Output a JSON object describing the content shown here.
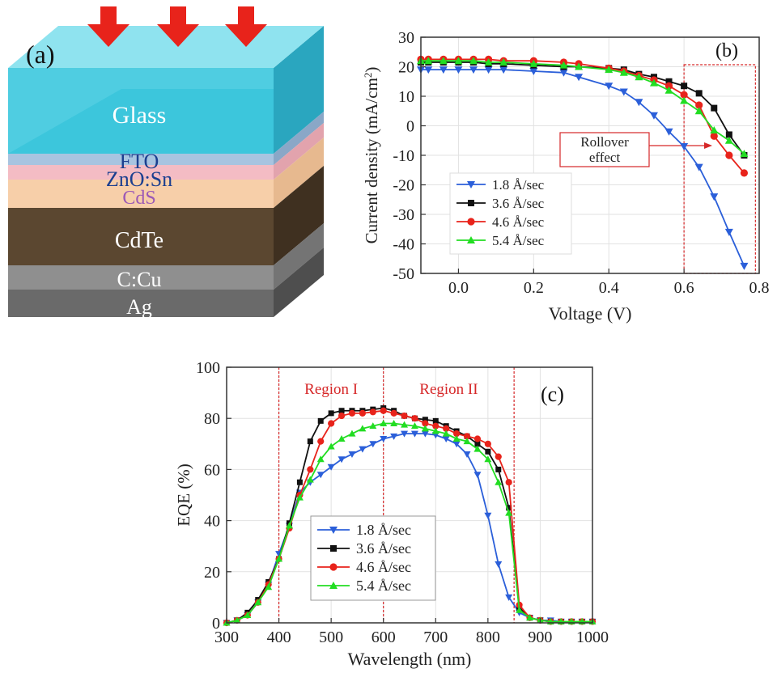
{
  "panel_a": {
    "label": "(a)",
    "layers": [
      {
        "name": "Glass",
        "color": "#3cc6dc"
      },
      {
        "name": "FTO",
        "color": "#a8c4e0",
        "text_color": "#1b3f8f"
      },
      {
        "name": "ZnO:Sn",
        "color": "#f4bcc4",
        "text_color": "#1b3f8f"
      },
      {
        "name": "CdS",
        "color": "#f7cfa9",
        "text_color": "#9b59b6"
      },
      {
        "name": "CdTe",
        "color": "#5b4730"
      },
      {
        "name": "C:Cu",
        "color": "#8f8f8f"
      },
      {
        "name": "Ag",
        "color": "#6a6a6a"
      }
    ],
    "arrow_color": "#e8231b"
  },
  "chart_data": [
    {
      "type": "line",
      "panel_label": "(b)",
      "xlabel": "Voltage (V)",
      "ylabel": "Current density (mA/cm²)",
      "ylabel_main": "Current density (mA/cm",
      "ylabel_sup": "2",
      "ylabel_close": ")",
      "xlim": [
        -0.1,
        0.8
      ],
      "ylim": [
        -50,
        30
      ],
      "xticks": [
        0.0,
        0.2,
        0.4,
        0.6,
        0.8
      ],
      "xtick_labels": [
        "0.0",
        "0.2",
        "0.4",
        "0.6",
        "0.8"
      ],
      "yticks": [
        -50,
        -40,
        -30,
        -20,
        -10,
        0,
        10,
        20,
        30
      ],
      "ytick_labels": [
        "-50",
        "-40",
        "-30",
        "-20",
        "-10",
        "0",
        "10",
        "20",
        "30"
      ],
      "grid": true,
      "legend_position": "bottom-left",
      "annotation": {
        "text_line1": "Rollover",
        "text_line2": "effect",
        "color": "#d62728",
        "box_x": [
          0.6,
          0.79
        ],
        "box_y": [
          -50,
          20
        ]
      },
      "series": [
        {
          "name": "1.8 Å/sec",
          "color": "#2b5fd9",
          "marker": "triangle-down",
          "x": [
            -0.12,
            -0.08,
            -0.04,
            0.0,
            0.04,
            0.08,
            0.12,
            0.2,
            0.28,
            0.32,
            0.4,
            0.44,
            0.48,
            0.52,
            0.56,
            0.6,
            0.64,
            0.68,
            0.72,
            0.76
          ],
          "y": [
            19,
            19,
            19,
            19,
            19,
            19,
            19,
            18.5,
            18,
            16.5,
            13.5,
            11.5,
            8,
            3.5,
            -2,
            -7,
            -14,
            -24,
            -36,
            -47.5
          ]
        },
        {
          "name": "3.6 Å/sec",
          "color": "#111111",
          "marker": "square",
          "x": [
            -0.12,
            -0.08,
            -0.04,
            0.0,
            0.04,
            0.08,
            0.12,
            0.2,
            0.28,
            0.32,
            0.4,
            0.44,
            0.48,
            0.52,
            0.56,
            0.6,
            0.64,
            0.68,
            0.72,
            0.76
          ],
          "y": [
            21.5,
            21.5,
            21.5,
            21.5,
            21.5,
            21,
            21,
            20.5,
            20,
            20,
            19.5,
            19,
            17.5,
            16.5,
            15,
            13.5,
            11,
            6,
            -3,
            -10
          ]
        },
        {
          "name": "4.6 Å/sec",
          "color": "#e8231b",
          "marker": "circle",
          "x": [
            -0.12,
            -0.08,
            -0.04,
            0.0,
            0.04,
            0.08,
            0.12,
            0.2,
            0.28,
            0.32,
            0.4,
            0.44,
            0.48,
            0.52,
            0.56,
            0.6,
            0.64,
            0.68,
            0.72,
            0.76
          ],
          "y": [
            22.5,
            22.5,
            22.5,
            22.5,
            22.5,
            22.5,
            22,
            22,
            21.5,
            21,
            19.5,
            18.5,
            17,
            15.5,
            13.5,
            10.5,
            7,
            -3.5,
            -10,
            -16
          ]
        },
        {
          "name": "5.4 Å/sec",
          "color": "#22dd22",
          "marker": "triangle-up",
          "x": [
            -0.12,
            -0.08,
            -0.04,
            0.0,
            0.04,
            0.08,
            0.12,
            0.2,
            0.28,
            0.32,
            0.4,
            0.44,
            0.48,
            0.52,
            0.56,
            0.6,
            0.64,
            0.68,
            0.72,
            0.76
          ],
          "y": [
            22,
            22,
            22,
            22,
            22,
            21.5,
            21.5,
            21,
            20.5,
            20,
            19,
            18,
            16.5,
            14.5,
            12,
            8.5,
            5,
            -1.5,
            -5,
            -9.5
          ]
        }
      ]
    },
    {
      "type": "line",
      "panel_label": "(c)",
      "xlabel": "Wavelength (nm)",
      "ylabel": "EQE (%)",
      "xlim": [
        300,
        1000
      ],
      "ylim": [
        0,
        100
      ],
      "xticks": [
        300,
        400,
        500,
        600,
        700,
        800,
        900,
        1000
      ],
      "xtick_labels": [
        "300",
        "400",
        "500",
        "600",
        "700",
        "800",
        "900",
        "1000"
      ],
      "yticks": [
        0,
        20,
        40,
        60,
        80,
        100
      ],
      "ytick_labels": [
        "0",
        "20",
        "40",
        "60",
        "80",
        "100"
      ],
      "grid": true,
      "legend_position": "bottom-center",
      "regions": [
        {
          "label": "Region I",
          "x_start": 400,
          "x_end": 600
        },
        {
          "label": "Region II",
          "x_start": 600,
          "x_end": 850
        }
      ],
      "region_color": "#d62728",
      "series": [
        {
          "name": "1.8 Å/sec",
          "color": "#2b5fd9",
          "marker": "triangle-down",
          "x": [
            300,
            320,
            340,
            360,
            380,
            400,
            420,
            440,
            460,
            480,
            500,
            520,
            540,
            560,
            580,
            600,
            620,
            640,
            660,
            680,
            700,
            720,
            740,
            760,
            780,
            800,
            820,
            840,
            860,
            880,
            900,
            920,
            940,
            960,
            980,
            1000
          ],
          "y": [
            0,
            1,
            3,
            8,
            15,
            27,
            38,
            51,
            55,
            58,
            61,
            64,
            66,
            68,
            70,
            72,
            73,
            74,
            74,
            74,
            73.5,
            72,
            70,
            66,
            58,
            42,
            23,
            10,
            4,
            2,
            1,
            1,
            0.5,
            0.5,
            0.5,
            0.5
          ]
        },
        {
          "name": "3.6 Å/sec",
          "color": "#111111",
          "marker": "square",
          "x": [
            300,
            320,
            340,
            360,
            380,
            400,
            420,
            440,
            460,
            480,
            500,
            520,
            540,
            560,
            580,
            600,
            620,
            640,
            660,
            680,
            700,
            720,
            740,
            760,
            780,
            800,
            820,
            840,
            860,
            880,
            900,
            920,
            940,
            960,
            980,
            1000
          ],
          "y": [
            0,
            1,
            4,
            9,
            16,
            25,
            39,
            55,
            71,
            79,
            82,
            83,
            83,
            83,
            83.5,
            84,
            83,
            81,
            80,
            79.5,
            79,
            77,
            75,
            73,
            70,
            67,
            60,
            45,
            6,
            2,
            1,
            0.5,
            0.5,
            0.5,
            0.5,
            0.5
          ]
        },
        {
          "name": "4.6 Å/sec",
          "color": "#e8231b",
          "marker": "circle",
          "x": [
            300,
            320,
            340,
            360,
            380,
            400,
            420,
            440,
            460,
            480,
            500,
            520,
            540,
            560,
            580,
            600,
            620,
            640,
            660,
            680,
            700,
            720,
            740,
            760,
            780,
            800,
            820,
            840,
            860,
            880,
            900,
            920,
            940,
            960,
            980,
            1000
          ],
          "y": [
            0,
            1,
            3,
            8,
            15,
            25,
            37,
            50,
            60,
            71,
            78,
            81,
            82,
            82,
            82.5,
            83,
            82,
            81,
            80,
            78,
            77,
            76,
            74,
            73,
            72,
            70,
            65,
            55,
            7,
            2,
            1,
            0.5,
            0.5,
            0.5,
            0.5,
            0.5
          ]
        },
        {
          "name": "5.4 Å/sec",
          "color": "#22dd22",
          "marker": "triangle-up",
          "x": [
            300,
            320,
            340,
            360,
            380,
            400,
            420,
            440,
            460,
            480,
            500,
            520,
            540,
            560,
            580,
            600,
            620,
            640,
            660,
            680,
            700,
            720,
            740,
            760,
            780,
            800,
            820,
            840,
            860,
            880,
            900,
            920,
            940,
            960,
            980,
            1000
          ],
          "y": [
            0,
            1,
            3,
            8,
            14,
            25,
            38,
            49,
            56,
            64,
            69,
            72,
            74,
            76,
            77,
            78,
            78,
            77.5,
            77,
            76,
            75,
            74,
            72,
            71,
            68,
            64,
            55,
            43,
            5,
            2,
            1,
            0.5,
            0.5,
            0.5,
            0.5,
            0.5
          ]
        }
      ]
    }
  ]
}
